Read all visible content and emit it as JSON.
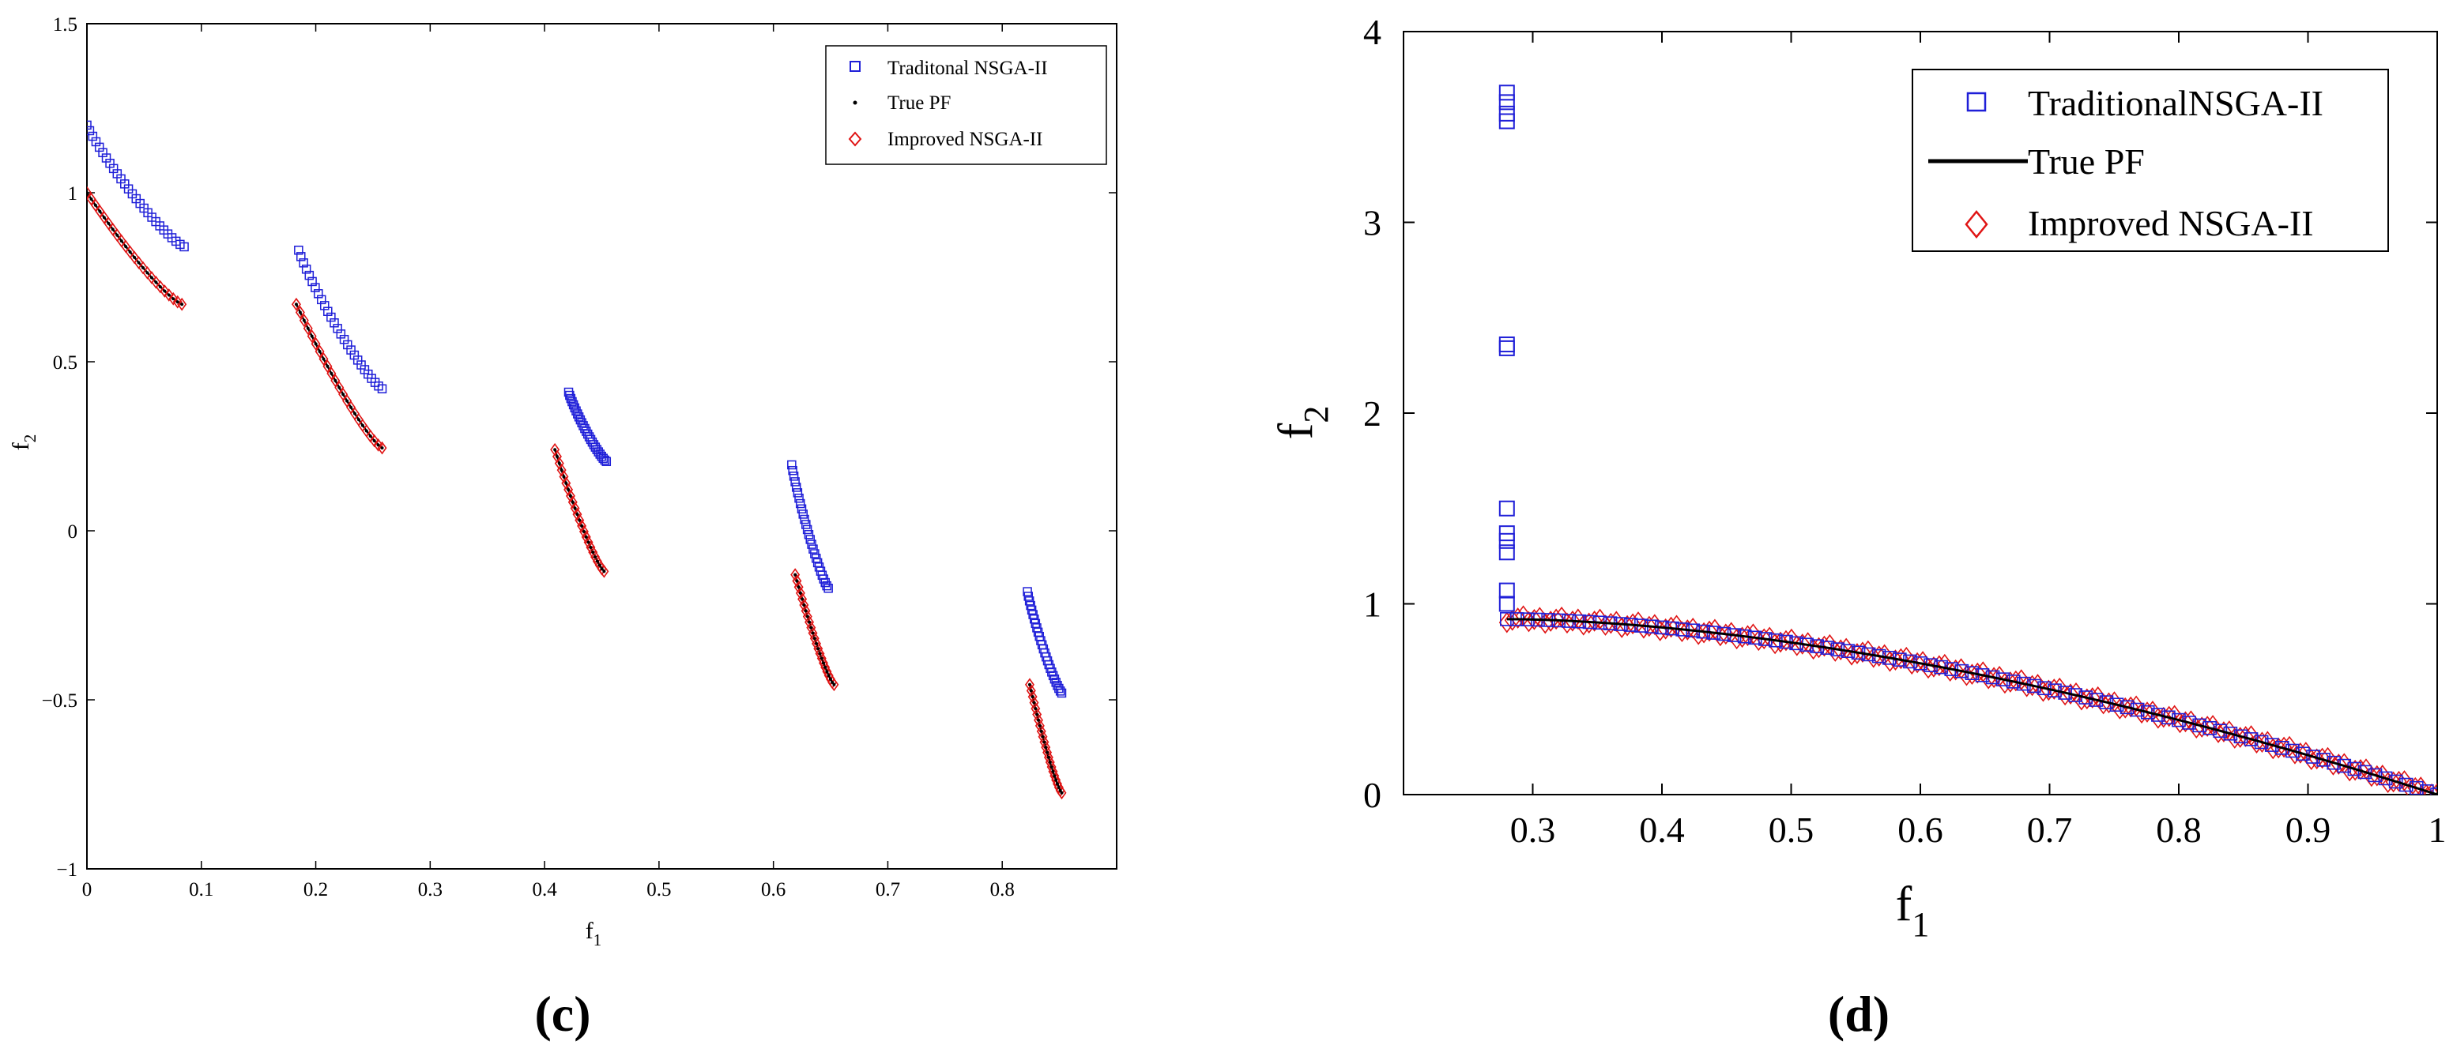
{
  "chart_data": [
    {
      "panel_label": "(c)",
      "type": "scatter",
      "title": "",
      "xlabel": "f",
      "xlabel_sub": "1",
      "ylabel": "f",
      "ylabel_sub": "2",
      "xlim": [
        0,
        0.9
      ],
      "ylim": [
        -1,
        1.5
      ],
      "xticks": [
        "0",
        "0.1",
        "0.2",
        "0.3",
        "0.4",
        "0.5",
        "0.6",
        "0.7",
        "0.8"
      ],
      "xtick_values": [
        0,
        0.1,
        0.2,
        0.3,
        0.4,
        0.5,
        0.6,
        0.7,
        0.8
      ],
      "yticks": [
        "−1",
        "−0.5",
        "0",
        "0.5",
        "1",
        "1.5"
      ],
      "ytick_values": [
        -1,
        -0.5,
        0,
        0.5,
        1,
        1.5
      ],
      "legend_position": "top-right",
      "series": [
        {
          "name": "Traditonal NSGA-II",
          "marker": "square",
          "color": "#1f1fd8",
          "segments": [
            {
              "x": [
                0.0,
                0.085
              ],
              "y": [
                1.2,
                0.84
              ]
            },
            {
              "x": [
                0.185,
                0.258
              ],
              "y": [
                0.83,
                0.42
              ]
            },
            {
              "x": [
                0.421,
                0.454
              ],
              "y": [
                0.41,
                0.205
              ]
            },
            {
              "x": [
                0.616,
                0.648
              ],
              "y": [
                0.195,
                -0.17
              ]
            },
            {
              "x": [
                0.822,
                0.852
              ],
              "y": [
                -0.18,
                -0.48
              ]
            }
          ]
        },
        {
          "name": "True PF",
          "marker": "dot",
          "color": "#000000",
          "segments": [
            {
              "x": [
                0.0,
                0.083
              ],
              "y": [
                1.0,
                0.67
              ]
            },
            {
              "x": [
                0.183,
                0.258
              ],
              "y": [
                0.67,
                0.245
              ]
            },
            {
              "x": [
                0.409,
                0.452
              ],
              "y": [
                0.24,
                -0.12
              ]
            },
            {
              "x": [
                0.619,
                0.653
              ],
              "y": [
                -0.13,
                -0.455
              ]
            },
            {
              "x": [
                0.824,
                0.852
              ],
              "y": [
                -0.455,
                -0.775
              ]
            }
          ]
        },
        {
          "name": "Improved NSGA-II",
          "marker": "diamond",
          "color": "#e01414",
          "segments": [
            {
              "x": [
                0.0,
                0.083
              ],
              "y": [
                1.0,
                0.67
              ]
            },
            {
              "x": [
                0.183,
                0.258
              ],
              "y": [
                0.67,
                0.245
              ]
            },
            {
              "x": [
                0.409,
                0.452
              ],
              "y": [
                0.24,
                -0.12
              ]
            },
            {
              "x": [
                0.619,
                0.653
              ],
              "y": [
                -0.13,
                -0.455
              ]
            },
            {
              "x": [
                0.824,
                0.852
              ],
              "y": [
                -0.455,
                -0.775
              ]
            }
          ]
        }
      ]
    },
    {
      "panel_label": "(d)",
      "type": "scatter",
      "title": "",
      "xlabel": "f",
      "xlabel_sub": "1",
      "ylabel": "f",
      "ylabel_sub": "2",
      "xlim": [
        0.2,
        1.0
      ],
      "ylim": [
        0,
        4
      ],
      "xticks": [
        "0.3",
        "0.4",
        "0.5",
        "0.6",
        "0.7",
        "0.8",
        "0.9",
        "1"
      ],
      "xtick_values": [
        0.3,
        0.4,
        0.5,
        0.6,
        0.7,
        0.8,
        0.9,
        1.0
      ],
      "yticks": [
        "0",
        "1",
        "2",
        "3",
        "4"
      ],
      "ytick_values": [
        0,
        1,
        2,
        3,
        4
      ],
      "legend_position": "top-right",
      "series": [
        {
          "name": "TraditionalNSGA-II",
          "marker": "square",
          "color": "#1f1fd8",
          "front": {
            "x": [
              0.28,
              1.0
            ],
            "y0": 0.92
          },
          "outliers": {
            "x": 0.28,
            "y": [
              3.68,
              3.63,
              3.57,
              3.53,
              2.36,
              2.34,
              1.5,
              1.37,
              1.33,
              1.27,
              1.07,
              1.0
            ]
          }
        },
        {
          "name": "True PF",
          "marker": "line",
          "color": "#000000",
          "front": {
            "x": [
              0.28,
              1.0
            ],
            "y0": 0.92
          }
        },
        {
          "name": "Improved NSGA-II",
          "marker": "diamond",
          "color": "#e01414",
          "front": {
            "x": [
              0.28,
              1.0
            ],
            "y0": 0.92
          }
        }
      ]
    }
  ]
}
